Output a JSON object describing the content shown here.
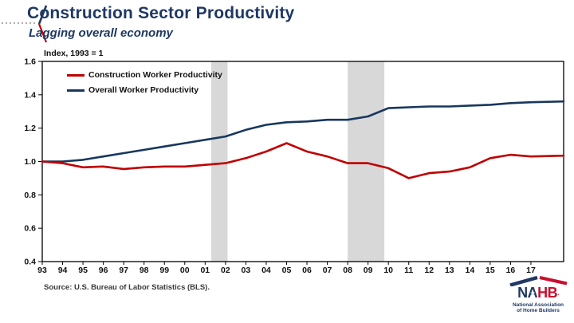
{
  "header": {
    "title": "Construction Sector Productivity",
    "subtitle": "Lagging overall economy",
    "navy": "#1F3864",
    "red": "#C00000"
  },
  "chart_data": {
    "type": "line",
    "title": "Index, 1993 = 1",
    "categories": [
      "93",
      "94",
      "95",
      "96",
      "97",
      "98",
      "99",
      "00",
      "01",
      "02",
      "03",
      "04",
      "05",
      "06",
      "07",
      "08",
      "09",
      "10",
      "11",
      "12",
      "13",
      "14",
      "15",
      "16",
      "17"
    ],
    "series": [
      {
        "name": "Construction Worker Productivity",
        "color": "#C00000",
        "values": [
          1.0,
          0.99,
          0.965,
          0.97,
          0.955,
          0.965,
          0.97,
          0.97,
          0.98,
          0.99,
          1.02,
          1.06,
          1.11,
          1.06,
          1.03,
          0.99,
          0.99,
          0.96,
          0.9,
          0.93,
          0.94,
          0.965,
          1.02,
          1.04,
          1.03
        ],
        "edge_value": 1.035
      },
      {
        "name": "Overall Worker Productivity",
        "color": "#17375E",
        "values": [
          1.0,
          1.0,
          1.01,
          1.03,
          1.05,
          1.07,
          1.09,
          1.11,
          1.13,
          1.15,
          1.19,
          1.22,
          1.235,
          1.24,
          1.25,
          1.25,
          1.27,
          1.32,
          1.325,
          1.33,
          1.33,
          1.335,
          1.34,
          1.35,
          1.355
        ],
        "edge_value": 1.36
      }
    ],
    "ylim": [
      0.4,
      1.6
    ],
    "yticks": [
      0.4,
      0.6,
      0.8,
      1.0,
      1.2,
      1.4,
      1.6
    ],
    "recession_bands": [
      {
        "from_year": 2001.3,
        "to_year": 2002.1
      },
      {
        "from_year": 2008.0,
        "to_year": 2009.8
      }
    ],
    "band_color": "#D8D8D8",
    "grid": false,
    "legend_position": "top-left-inside",
    "axis_color": "#000000"
  },
  "footer": {
    "source": "Source: U.S. Bureau of Labor Statistics (BLS).",
    "logo": {
      "word_part1": "NA",
      "word_part2": "HB",
      "registered_mark": ".",
      "star": "★",
      "tagline_line1": "National Association",
      "tagline_line2": "of Home Builders"
    }
  }
}
